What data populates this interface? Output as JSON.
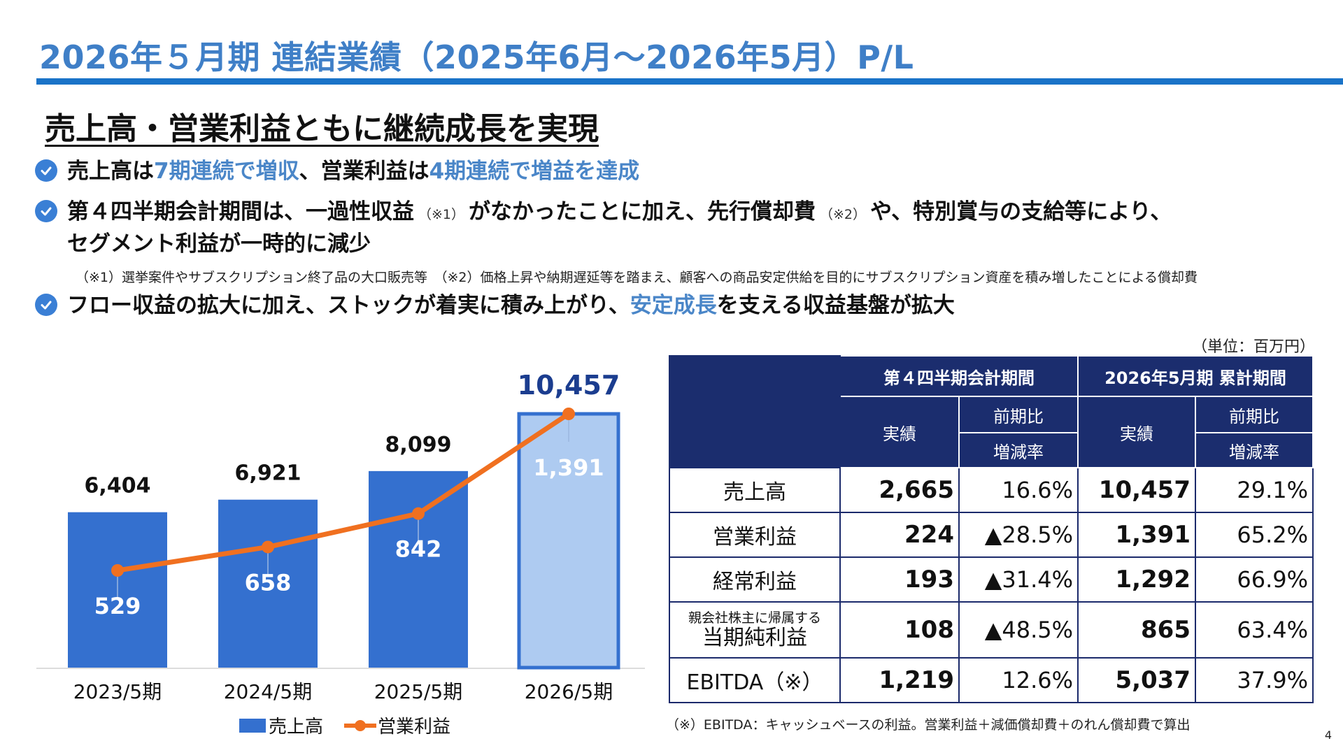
{
  "header": {
    "title": "2026年５月期 連結業績（2025年6月〜2026年5月）P/L",
    "subtitle": "売上高・営業利益ともに継続成長を実現"
  },
  "bullets": [
    {
      "parts": [
        "売上高は",
        "7期連続で増収",
        "、営業利益は",
        "4期連続で増益を達成"
      ]
    },
    {
      "line1a": "第４四半期会計期間は、一過性収益",
      "note1": "（※1）",
      "line1b": "がなかったことに加え、先行償却費",
      "note2": "（※2）",
      "line1c": "や、特別賞与の支給等により、",
      "line2": "セグメント利益が一時的に減少"
    },
    {
      "parts": [
        "フロー収益の拡大に加え、ストックが着実に積み上がり、",
        "安定成長",
        "を支える収益基盤が拡大"
      ]
    }
  ],
  "notes": "（※1）選挙案件やサブスクリプション終了品の大口販売等　（※2）価格上昇や納期遅延等を踏まえ、顧客への商品安定供給を目的にサブスクリプション資産を積み増したことによる償却費",
  "unit": "（単位：百万円）",
  "chart_data": {
    "type": "bar",
    "categories": [
      "2023/5期",
      "2024/5期",
      "2025/5期",
      "2026/5期"
    ],
    "series": [
      {
        "name": "売上高",
        "type": "bar",
        "values": [
          6404,
          6921,
          8099,
          10457
        ],
        "labels": [
          "6,404",
          "6,921",
          "8,099",
          "10,457"
        ]
      },
      {
        "name": "営業利益",
        "type": "line",
        "values": [
          529,
          658,
          842,
          1391
        ],
        "labels": [
          "529",
          "658",
          "842",
          "1,391"
        ]
      }
    ],
    "colors": {
      "bar": "#3470cf",
      "bar_highlight": "#aecbf1",
      "bar_highlight_border": "#3470cf",
      "line": "#f07020",
      "label_highlight": "#1b3d8f"
    },
    "legend": {
      "position": "bottom",
      "items": [
        "売上高",
        "営業利益"
      ]
    }
  },
  "table": {
    "headers": {
      "q4": "第４四半期会計期間",
      "full": "2026年5月期 累計期間",
      "actual": "実績",
      "yoy": "前期比",
      "rate": "増減率"
    },
    "rows": [
      {
        "label": "売上高",
        "q4_val": "2,665",
        "q4_rate": "16.6%",
        "full_val": "10,457",
        "full_rate": "29.1%"
      },
      {
        "label": "営業利益",
        "q4_val": "224",
        "q4_rate": "▲28.5%",
        "full_val": "1,391",
        "full_rate": "65.2%"
      },
      {
        "label": "経常利益",
        "q4_val": "193",
        "q4_rate": "▲31.4%",
        "full_val": "1,292",
        "full_rate": "66.9%"
      },
      {
        "label_small": "親会社株主に帰属する",
        "label": "当期純利益",
        "q4_val": "108",
        "q4_rate": "▲48.5%",
        "full_val": "865",
        "full_rate": "63.4%"
      },
      {
        "label": "EBITDA（※）",
        "q4_val": "1,219",
        "q4_rate": "12.6%",
        "full_val": "5,037",
        "full_rate": "37.9%"
      }
    ]
  },
  "footnote": "（※）EBITDA：キャッシュベースの利益。営業利益＋減価償却費＋のれん償却費で算出",
  "page_number": "4"
}
